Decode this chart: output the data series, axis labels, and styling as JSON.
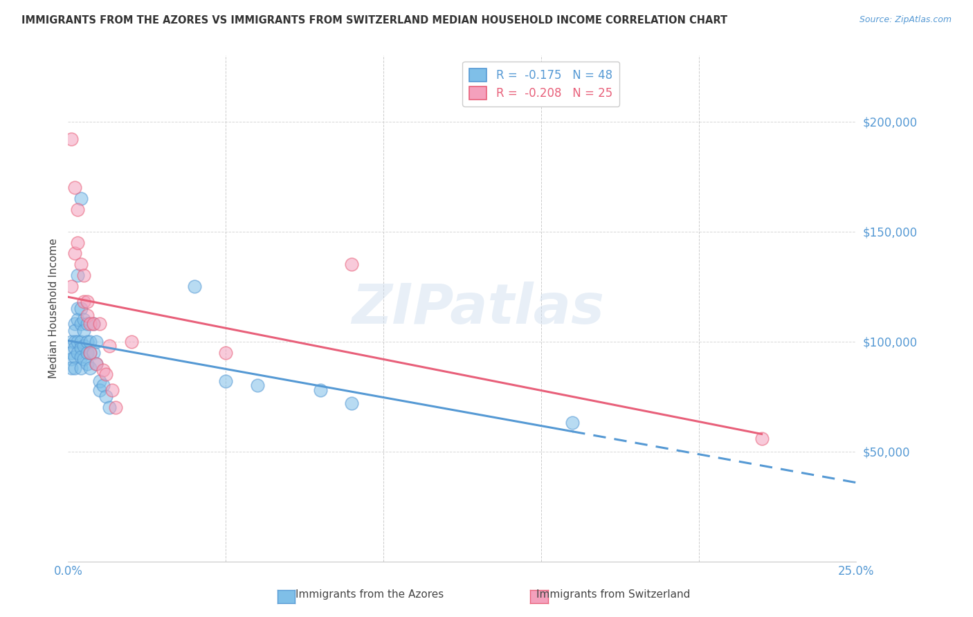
{
  "title": "IMMIGRANTS FROM THE AZORES VS IMMIGRANTS FROM SWITZERLAND MEDIAN HOUSEHOLD INCOME CORRELATION CHART",
  "source": "Source: ZipAtlas.com",
  "ylabel": "Median Household Income",
  "legend_azores": "R =  -0.175   N = 48",
  "legend_switzerland": "R =  -0.208   N = 25",
  "legend_label_azores": "Immigrants from the Azores",
  "legend_label_switzerland": "Immigrants from Switzerland",
  "y_ticks": [
    50000,
    100000,
    150000,
    200000
  ],
  "y_tick_labels": [
    "$50,000",
    "$100,000",
    "$150,000",
    "$200,000"
  ],
  "xlim": [
    0.0,
    0.25
  ],
  "ylim": [
    0,
    230000
  ],
  "watermark": "ZIPatlas",
  "color_azores": "#7fbfe8",
  "color_switzerland": "#f4a0bc",
  "color_azores_line": "#5599d4",
  "color_switzerland_line": "#e8607a",
  "azores_x": [
    0.001,
    0.001,
    0.001,
    0.001,
    0.002,
    0.002,
    0.002,
    0.002,
    0.002,
    0.002,
    0.003,
    0.003,
    0.003,
    0.003,
    0.003,
    0.004,
    0.004,
    0.004,
    0.004,
    0.004,
    0.004,
    0.004,
    0.005,
    0.005,
    0.005,
    0.005,
    0.006,
    0.006,
    0.006,
    0.006,
    0.007,
    0.007,
    0.007,
    0.008,
    0.008,
    0.009,
    0.009,
    0.01,
    0.01,
    0.011,
    0.012,
    0.013,
    0.04,
    0.05,
    0.06,
    0.08,
    0.09,
    0.16
  ],
  "azores_y": [
    100000,
    95000,
    92000,
    88000,
    108000,
    105000,
    100000,
    97000,
    93000,
    88000,
    130000,
    115000,
    110000,
    100000,
    95000,
    165000,
    115000,
    108000,
    100000,
    97000,
    93000,
    88000,
    110000,
    105000,
    98000,
    92000,
    108000,
    100000,
    95000,
    90000,
    100000,
    95000,
    88000,
    108000,
    95000,
    100000,
    90000,
    82000,
    78000,
    80000,
    75000,
    70000,
    125000,
    82000,
    80000,
    78000,
    72000,
    63000
  ],
  "switzerland_x": [
    0.001,
    0.001,
    0.002,
    0.002,
    0.003,
    0.003,
    0.004,
    0.005,
    0.005,
    0.006,
    0.006,
    0.007,
    0.007,
    0.008,
    0.009,
    0.01,
    0.011,
    0.012,
    0.013,
    0.014,
    0.015,
    0.02,
    0.05,
    0.09,
    0.22
  ],
  "switzerland_y": [
    192000,
    125000,
    170000,
    140000,
    160000,
    145000,
    135000,
    130000,
    118000,
    118000,
    112000,
    108000,
    95000,
    108000,
    90000,
    108000,
    87000,
    85000,
    98000,
    78000,
    70000,
    100000,
    95000,
    135000,
    56000
  ]
}
